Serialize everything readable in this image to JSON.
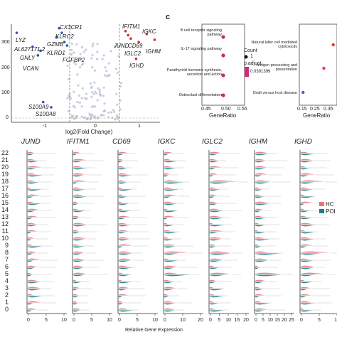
{
  "volcano": {
    "yticks": [
      "300",
      "200",
      "100",
      "0"
    ],
    "xticks": [
      "-1",
      "0",
      "1"
    ],
    "xlabel": "log2(Fold Change)",
    "labels_left": [
      "LYZ",
      "AL627171.2",
      "GNLY",
      "VCAN",
      "S100A9",
      "S100A8"
    ],
    "labels_mid": [
      "CX3CR1",
      "KLRC2",
      "GZMB",
      "KLRD1",
      "FGFBP2"
    ],
    "labels_right": [
      "IFITM1",
      "JUND",
      "CD69",
      "IGLC2",
      "IGKC",
      "IGHM",
      "IGHD"
    ]
  },
  "dotplot": {
    "panel_letter": "c",
    "left": {
      "pathways": [
        "B cell receptor signaling pathway",
        "IL-17 signaling pathway",
        "Parathyroid hormone synthesis, secretion and action",
        "Osteoclast differentiation"
      ],
      "xticks": [
        "0.45",
        "0.50",
        "0.55"
      ],
      "xlabel": "GeneRatio"
    },
    "legend": {
      "count_title": "Count",
      "count_value": "1",
      "padj_title": "p.adjust",
      "padj_value": "0.0391399"
    },
    "right": {
      "pathways": [
        "Natural killer cell mediated cytotoxicity",
        "Antigen processing and presentation",
        "Graft versus host disease"
      ],
      "xticks": [
        "0.15",
        "0.25",
        "0.35"
      ],
      "xlabel": "GeneRatio"
    }
  },
  "violin": {
    "genes": [
      "JUND",
      "IFITM1",
      "CD69",
      "IGKC",
      "IGLC2",
      "IGHM",
      "IGHD"
    ],
    "clusters": [
      "22",
      "21",
      "20",
      "19",
      "18",
      "17",
      "16",
      "15",
      "14",
      "13",
      "12",
      "11",
      "10",
      "9",
      "8",
      "7",
      "6",
      "5",
      "4",
      "3",
      "2",
      "1",
      "0"
    ],
    "xticks": [
      [
        "0",
        "5",
        "10"
      ],
      [
        "0",
        "5",
        "10"
      ],
      [
        "0",
        "5",
        "10"
      ],
      [
        "0",
        "10",
        "20"
      ],
      [
        "0",
        "5",
        "10",
        "15",
        "20"
      ],
      [
        "0",
        "5",
        "10",
        "15",
        "20",
        "25"
      ],
      [
        "0",
        "5",
        "10"
      ]
    ],
    "xlabel": "Relative Gene Expression",
    "legend": [
      "HC",
      "POI"
    ],
    "colors": {
      "HC": "#e8737a",
      "POI": "#1b7f86"
    }
  },
  "chart_data": [
    {
      "type": "scatter",
      "xlabel": "log2(Fold Change)",
      "ylabel": "",
      "xlim": [
        -1.6,
        1.2
      ],
      "ylim": [
        -10,
        330
      ],
      "series": [
        {
          "name": "",
          "points": [
            {
              "gene": "LYZ",
              "x": -1.5,
              "y": 300
            },
            {
              "gene": "AL627171.2",
              "x": -1.2,
              "y": 252
            },
            {
              "gene": "GNLY",
              "x": -1.05,
              "y": 238
            },
            {
              "gene": "VCAN",
              "x": -1.1,
              "y": 222
            },
            {
              "gene": "S100A9",
              "x": -1.0,
              "y": 60
            },
            {
              "gene": "S100A8",
              "x": -0.85,
              "y": 42
            },
            {
              "gene": "CX3CR1",
              "x": -0.7,
              "y": 316
            },
            {
              "gene": "KLRC2",
              "x": -0.65,
              "y": 300
            },
            {
              "gene": "GZMB",
              "x": -0.75,
              "y": 284
            },
            {
              "gene": "KLRD1",
              "x": -0.6,
              "y": 268
            },
            {
              "gene": "FGFBP2",
              "x": -0.55,
              "y": 256
            },
            {
              "gene": "IFITM1",
              "x": 0.55,
              "y": 306
            },
            {
              "gene": "JUND",
              "x": 0.6,
              "y": 292
            },
            {
              "gene": "CD69",
              "x": 0.65,
              "y": 280
            },
            {
              "gene": "IGLC2",
              "x": 0.8,
              "y": 268
            },
            {
              "gene": "IGKC",
              "x": 0.95,
              "y": 296
            },
            {
              "gene": "IGHM",
              "x": 1.1,
              "y": 276
            },
            {
              "gene": "IGHD",
              "x": 0.75,
              "y": 210
            }
          ]
        }
      ]
    },
    {
      "type": "scatter",
      "title": "",
      "xlabel": "GeneRatio",
      "xlim": [
        0.45,
        0.55
      ],
      "points": [
        {
          "pathway": "B cell receptor signaling pathway",
          "x": 0.5,
          "count": 1,
          "p_adjust": 0.0391399
        },
        {
          "pathway": "IL-17 signaling pathway",
          "x": 0.5,
          "count": 1,
          "p_adjust": 0.0391399
        },
        {
          "pathway": "Parathyroid hormone synthesis, secretion and action",
          "x": 0.5,
          "count": 1,
          "p_adjust": 0.0391399
        },
        {
          "pathway": "Osteoclast differentiation",
          "x": 0.5,
          "count": 1,
          "p_adjust": 0.0391399
        }
      ]
    },
    {
      "type": "scatter",
      "xlabel": "GeneRatio",
      "xlim": [
        0.15,
        0.35
      ],
      "points": [
        {
          "pathway": "Natural killer cell mediated cytotoxicity",
          "x": 0.33
        },
        {
          "pathway": "Antigen processing and presentation",
          "x": 0.28
        },
        {
          "pathway": "Graft versus host disease",
          "x": 0.17
        }
      ]
    },
    {
      "type": "area",
      "xlabel": "Relative Gene Expression",
      "categories": [
        "JUND",
        "IFITM1",
        "CD69",
        "IGKC",
        "IGLC2",
        "IGHM",
        "IGHD"
      ],
      "series": [
        {
          "name": "HC",
          "values": [
            0.6,
            0.7,
            0.5,
            0.5,
            0.5,
            0.5,
            0.4
          ]
        },
        {
          "name": "POI",
          "values": [
            0.7,
            0.8,
            0.6,
            0.6,
            0.6,
            0.6,
            0.5
          ]
        }
      ]
    }
  ]
}
